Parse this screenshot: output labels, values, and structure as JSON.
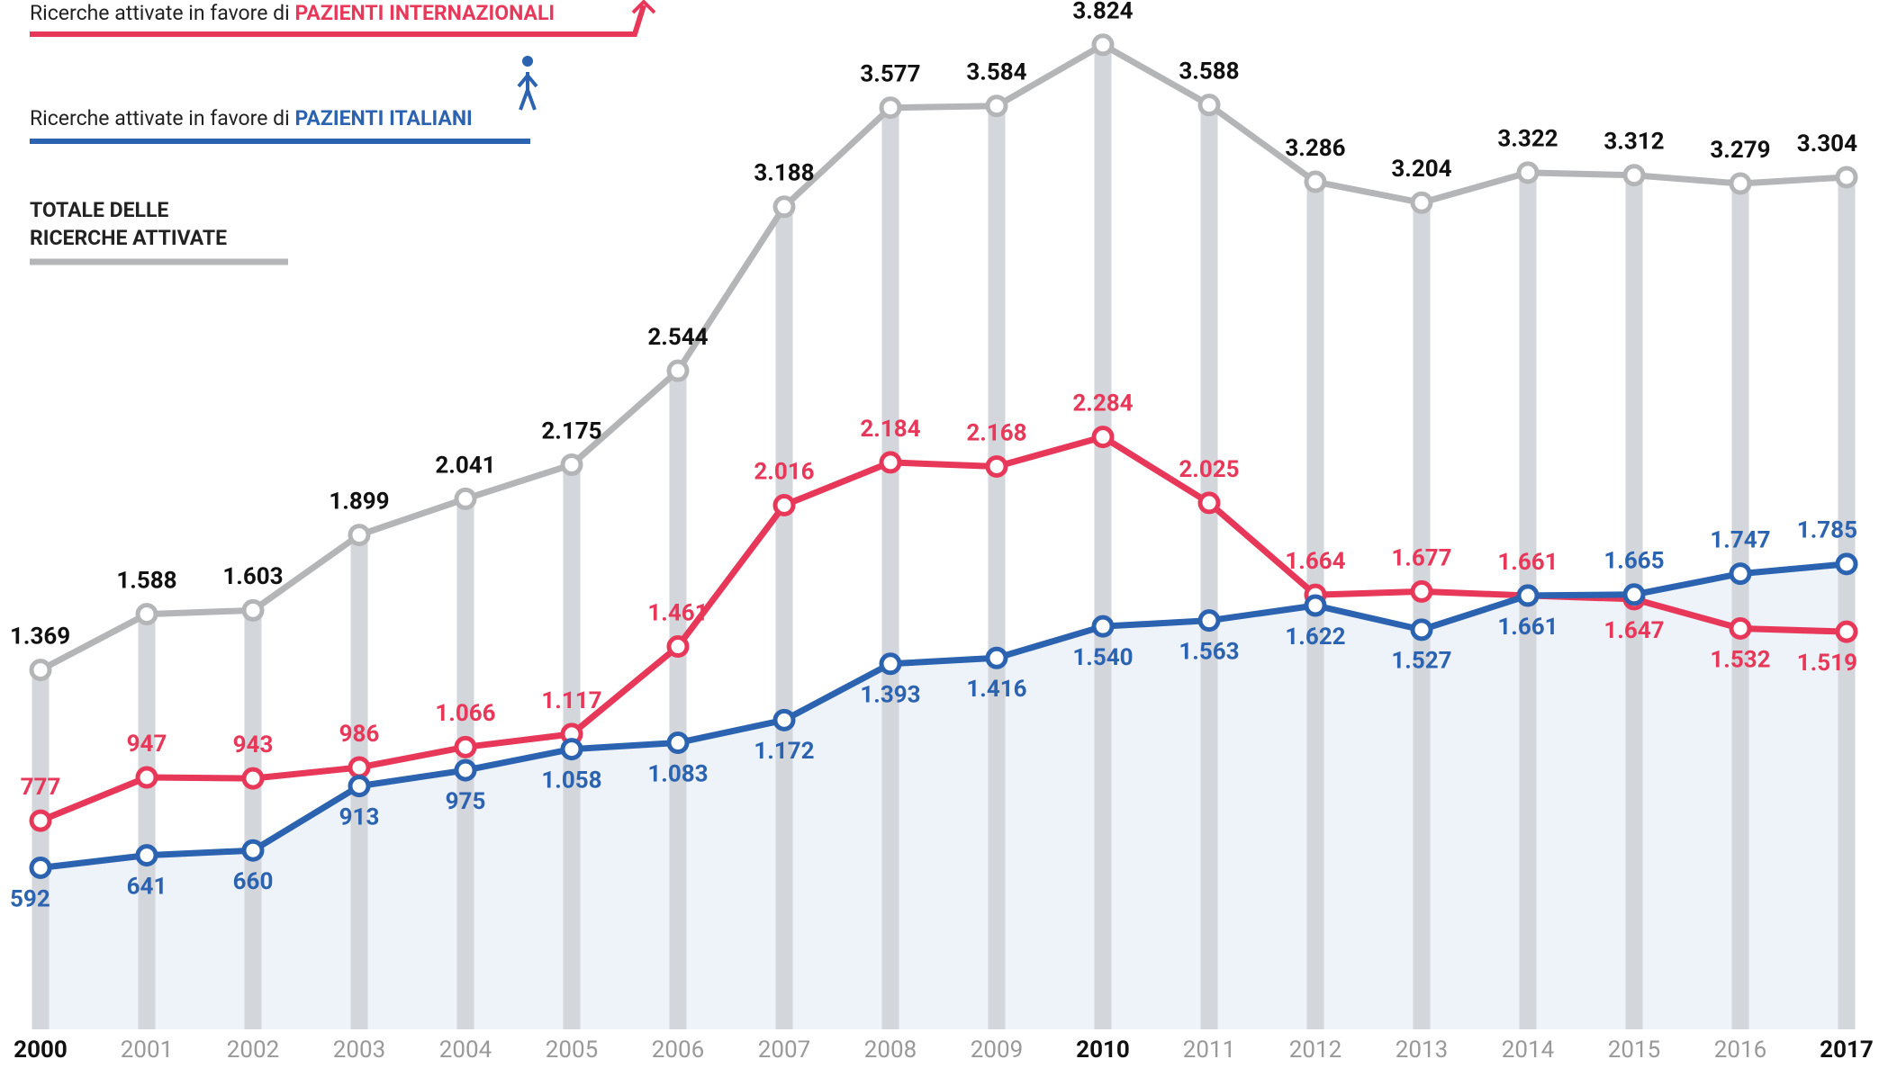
{
  "chart_data": {
    "type": "line",
    "categories": [
      "2000",
      "2001",
      "2002",
      "2003",
      "2004",
      "2005",
      "2006",
      "2007",
      "2008",
      "2009",
      "2010",
      "2011",
      "2012",
      "2013",
      "2014",
      "2015",
      "2016",
      "2017"
    ],
    "bold_categories": [
      0,
      10,
      17
    ],
    "ylim": [
      0,
      4000
    ],
    "legend_prefix": "Ricerche attivate in favore di",
    "series": [
      {
        "name": "TOTALE DELLE RICERCHE ATTIVATE",
        "color": "#b3b5b6",
        "values": [
          1369,
          1588,
          1603,
          1899,
          2041,
          2175,
          2544,
          3188,
          3577,
          3584,
          3824,
          3588,
          3286,
          3204,
          3322,
          3312,
          3279,
          3304
        ],
        "value_labels": [
          "1.369",
          "1.588",
          "1.603",
          "1.899",
          "2.041",
          "2.175",
          "2.544",
          "3.188",
          "3.577",
          "3.584",
          "3.824",
          "3.588",
          "3.286",
          "3.204",
          "3.322",
          "3.312",
          "3.279",
          "3.304"
        ]
      },
      {
        "name": "PAZIENTI INTERNAZIONALI",
        "color": "#e8385a",
        "values": [
          777,
          947,
          943,
          986,
          1066,
          1117,
          1461,
          2016,
          2184,
          2168,
          2284,
          2025,
          1664,
          1677,
          1661,
          1647,
          1532,
          1519
        ],
        "value_labels": [
          "777",
          "947",
          "943",
          "986",
          "1.066",
          "1.117",
          "1.461",
          "2.016",
          "2.184",
          "2.168",
          "2.284",
          "2.025",
          "1.664",
          "1.677",
          "1.661",
          "1.647",
          "1.532",
          "1.519"
        ]
      },
      {
        "name": "PAZIENTI ITALIANI",
        "color": "#2b63b0",
        "values": [
          592,
          641,
          660,
          913,
          975,
          1058,
          1083,
          1172,
          1393,
          1416,
          1540,
          1563,
          1622,
          1527,
          1661,
          1665,
          1747,
          1785
        ],
        "value_labels": [
          "592",
          "641",
          "660",
          "913",
          "975",
          "1.058",
          "1.083",
          "1.172",
          "1.393",
          "1.416",
          "1.540",
          "1.563",
          "1.622",
          "1.527",
          "1.661",
          "1.665",
          "1.747",
          "1.785"
        ]
      }
    ]
  }
}
